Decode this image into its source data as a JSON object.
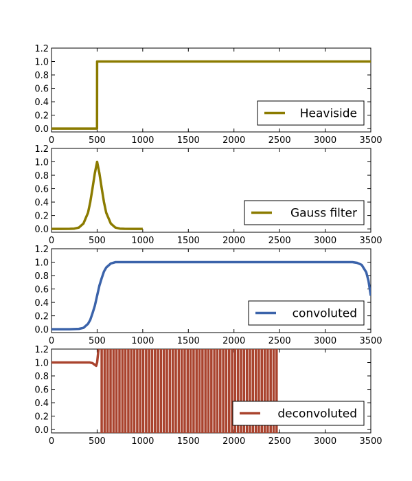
{
  "chart_data": [
    {
      "type": "line",
      "panel": "heaviside",
      "xlim": [
        0,
        3500
      ],
      "ylim": [
        -0.05,
        1.2
      ],
      "xticks": [
        "0",
        "500",
        "1000",
        "1500",
        "2000",
        "2500",
        "3000",
        "3500"
      ],
      "yticks": [
        "0.0",
        "0.2",
        "0.4",
        "0.6",
        "0.8",
        "1.0",
        "1.2"
      ],
      "series": [
        {
          "name": "Heaviside",
          "color": "#8b7b00",
          "x": [
            0,
            499,
            500,
            3500
          ],
          "y": [
            0,
            0,
            1,
            1
          ]
        }
      ],
      "legend": {
        "label": "Heaviside",
        "position": "lower-right"
      }
    },
    {
      "type": "line",
      "panel": "gauss",
      "xlim": [
        0,
        3500
      ],
      "ylim": [
        -0.05,
        1.2
      ],
      "xticks": [
        "0",
        "500",
        "1000",
        "1500",
        "2000",
        "2500",
        "3000",
        "3500"
      ],
      "yticks": [
        "0.0",
        "0.2",
        "0.4",
        "0.6",
        "0.8",
        "1.0",
        "1.2"
      ],
      "series": [
        {
          "name": "Gauss filter",
          "color": "#8b7b00",
          "x": [
            0,
            100,
            200,
            250,
            300,
            350,
            400,
            425,
            450,
            475,
            500,
            525,
            550,
            575,
            600,
            650,
            700,
            750,
            800,
            900,
            1000
          ],
          "y": [
            0,
            0,
            0.001,
            0.004,
            0.02,
            0.08,
            0.24,
            0.4,
            0.61,
            0.83,
            1.0,
            0.83,
            0.61,
            0.4,
            0.24,
            0.08,
            0.02,
            0.004,
            0.001,
            0,
            0
          ]
        }
      ],
      "legend": {
        "label": "Gauss filter",
        "position": "lower-right"
      }
    },
    {
      "type": "line",
      "panel": "convoluted",
      "xlim": [
        0,
        3500
      ],
      "ylim": [
        -0.05,
        1.2
      ],
      "xticks": [
        "0",
        "500",
        "1000",
        "1500",
        "2000",
        "2500",
        "3000",
        "3500"
      ],
      "yticks": [
        "0.0",
        "0.2",
        "0.4",
        "0.6",
        "0.8",
        "1.0",
        "1.2"
      ],
      "series": [
        {
          "name": "convoluted",
          "color": "#3b63aa",
          "x": [
            0,
            200,
            300,
            350,
            400,
            425,
            450,
            475,
            500,
            525,
            550,
            575,
            600,
            650,
            700,
            800,
            1000,
            2000,
            3000,
            3300,
            3350,
            3400,
            3450,
            3475,
            3500
          ],
          "y": [
            0,
            0,
            0.005,
            0.02,
            0.08,
            0.14,
            0.24,
            0.35,
            0.5,
            0.65,
            0.76,
            0.86,
            0.92,
            0.98,
            1.0,
            1.0,
            1.0,
            1.0,
            1.0,
            1.0,
            0.99,
            0.96,
            0.85,
            0.72,
            0.5
          ]
        }
      ],
      "legend": {
        "label": "convoluted",
        "position": "lower-right"
      }
    },
    {
      "type": "line",
      "panel": "deconvoluted",
      "xlim": [
        0,
        3500
      ],
      "ylim": [
        -0.05,
        1.2
      ],
      "xticks": [
        "0",
        "500",
        "1000",
        "1500",
        "2000",
        "2500",
        "3000",
        "3500"
      ],
      "yticks": [
        "0.0",
        "0.2",
        "0.4",
        "0.6",
        "0.8",
        "1.0",
        "1.2"
      ],
      "series": [
        {
          "name": "deconvoluted",
          "color": "#a9432e",
          "flat": {
            "x0": 0,
            "x1": 420,
            "y": 1.0
          },
          "dip": {
            "x": [
              420,
              450,
              470,
              490,
              500
            ],
            "y": [
              1.0,
              0.99,
              0.97,
              0.95,
              1.0
            ]
          },
          "oscillation": {
            "x_start": 550,
            "x_end": 2480,
            "period": 65,
            "y_low": -0.05,
            "y_high": 1.2
          }
        }
      ],
      "legend": {
        "label": "deconvoluted",
        "position": "lower-right"
      }
    }
  ]
}
